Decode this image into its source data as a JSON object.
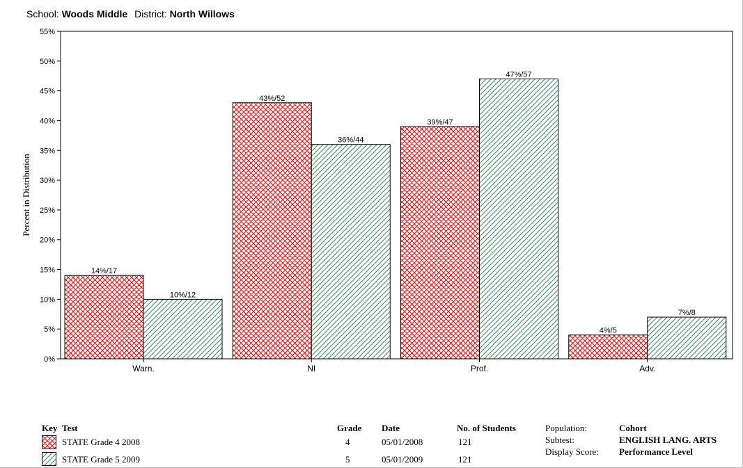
{
  "header": {
    "school_label": "School:",
    "school_value": "Woods Middle",
    "district_label": "District:",
    "district_value": "North Willows"
  },
  "chart_data": {
    "type": "bar",
    "categories": [
      "Warn.",
      "NI",
      "Prof.",
      "Adv."
    ],
    "series": [
      {
        "name": "STATE Grade 4 2008",
        "values": [
          14,
          43,
          39,
          4
        ],
        "labels": [
          "14%/17",
          "43%/52",
          "39%/47",
          "4%/5"
        ],
        "color": "#ff0000",
        "pattern": "crosshatch"
      },
      {
        "name": "STATE Grade 5 2009",
        "values": [
          10,
          36,
          47,
          7
        ],
        "labels": [
          "10%/12",
          "36%/44",
          "47%/57",
          "7%/8"
        ],
        "color": "#2e8b57",
        "pattern": "diagonal"
      }
    ],
    "ylabel": "Percent in Distribution",
    "ylim": [
      0,
      55
    ],
    "yticks": [
      "0%",
      "5%",
      "10%",
      "15%",
      "20%",
      "25%",
      "30%",
      "35%",
      "40%",
      "45%",
      "50%",
      "55%"
    ],
    "grid": false
  },
  "legend": {
    "key_header": "Key",
    "test_header": "Test",
    "grade_header": "Grade",
    "date_header": "Date",
    "students_header": "No. of Students",
    "rows": [
      {
        "test": "STATE Grade 4 2008",
        "grade": "4",
        "date": "05/01/2008",
        "students": "121"
      },
      {
        "test": "STATE Grade 5 2009",
        "grade": "5",
        "date": "05/01/2009",
        "students": "121"
      }
    ],
    "population_label": "Population:",
    "population_value": "Cohort",
    "subtest_label": "Subtest:",
    "subtest_value": "ENGLISH LANG. ARTS",
    "display_label": "Display Score:",
    "display_value": "Performance Level"
  }
}
